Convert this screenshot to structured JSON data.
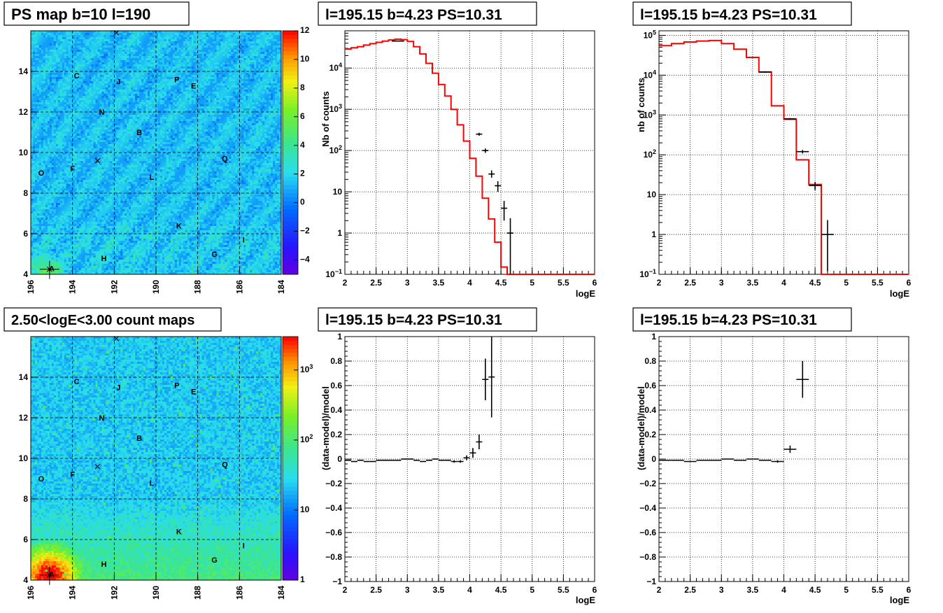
{
  "chart_data": [
    {
      "type": "heatmap",
      "title": "PS map b=10 l=190",
      "xlim": [
        196,
        184
      ],
      "ylim": [
        4,
        16
      ],
      "x_ticks": [
        "196",
        "194",
        "192",
        "190",
        "188",
        "186",
        "184"
      ],
      "y_ticks": [
        "4",
        "6",
        "8",
        "10",
        "12",
        "14"
      ],
      "z_range": [
        -5,
        12
      ],
      "z_ticks": [
        "12",
        "10",
        "8",
        "6",
        "4",
        "2",
        "0",
        "-2",
        "-4"
      ],
      "z_scale": "linear",
      "source_labels": [
        {
          "name": "A",
          "l": 195.0,
          "b": 4.3
        },
        {
          "name": "B",
          "l": 190.8,
          "b": 11.0
        },
        {
          "name": "C",
          "l": 193.8,
          "b": 13.8
        },
        {
          "name": "E",
          "l": 188.2,
          "b": 13.3
        },
        {
          "name": "F",
          "l": 194.0,
          "b": 9.2
        },
        {
          "name": "G",
          "l": 187.2,
          "b": 5.0
        },
        {
          "name": "H",
          "l": 192.5,
          "b": 4.8
        },
        {
          "name": "I",
          "l": 185.8,
          "b": 5.7
        },
        {
          "name": "J",
          "l": 191.8,
          "b": 13.5
        },
        {
          "name": "K",
          "l": 188.9,
          "b": 6.4
        },
        {
          "name": "L",
          "l": 190.2,
          "b": 8.8
        },
        {
          "name": "N",
          "l": 192.6,
          "b": 12.0
        },
        {
          "name": "O",
          "l": 195.5,
          "b": 9.0
        },
        {
          "name": "P",
          "l": 189.0,
          "b": 13.6
        },
        {
          "name": "Q",
          "l": 186.7,
          "b": 9.7
        }
      ],
      "markers": [
        {
          "l": 191.9,
          "b": 15.9
        },
        {
          "l": 192.8,
          "b": 9.6
        },
        {
          "l": 195.1,
          "b": 4.25
        }
      ]
    },
    {
      "type": "line",
      "title": "l=195.15 b=4.23 PS=10.31",
      "xlabel": "logE",
      "ylabel": "Nb of counts",
      "xlim": [
        2,
        6
      ],
      "ylim": [
        0.1,
        80000
      ],
      "y_scale": "log",
      "x_ticks": [
        "2",
        "2.5",
        "3",
        "3.5",
        "4",
        "4.5",
        "5",
        "5.5",
        "6"
      ],
      "y_ticks": [
        "10^-1",
        "1",
        "10",
        "10^2",
        "10^3",
        "10^4"
      ],
      "model_step": {
        "edges": [
          2.0,
          2.1,
          2.2,
          2.3,
          2.4,
          2.5,
          2.6,
          2.7,
          2.8,
          2.9,
          3.0,
          3.1,
          3.2,
          3.3,
          3.4,
          3.5,
          3.6,
          3.7,
          3.8,
          3.9,
          4.0,
          4.1,
          4.2,
          4.3,
          4.4,
          4.5,
          4.6,
          6.0
        ],
        "values": [
          29000,
          31000,
          33000,
          36000,
          39000,
          42000,
          45000,
          48000,
          50000,
          49000,
          44000,
          33000,
          22000,
          13000,
          7500,
          4000,
          2100,
          1000,
          420,
          170,
          65,
          24,
          7,
          2.2,
          0.6,
          0.15,
          0.1
        ]
      },
      "data_points": [
        {
          "x": 2.85,
          "y": 45000,
          "dx": 0.1,
          "ylo": 44000,
          "yhi": 46000
        },
        {
          "x": 4.15,
          "y": 250,
          "dx": 0.05,
          "ylo": 230,
          "yhi": 270
        },
        {
          "x": 4.25,
          "y": 100,
          "dx": 0.05,
          "ylo": 88,
          "yhi": 112
        },
        {
          "x": 4.35,
          "y": 27,
          "dx": 0.05,
          "ylo": 22,
          "yhi": 33
        },
        {
          "x": 4.45,
          "y": 14,
          "dx": 0.05,
          "ylo": 10,
          "yhi": 18
        },
        {
          "x": 4.55,
          "y": 4,
          "dx": 0.05,
          "ylo": 2,
          "yhi": 6
        },
        {
          "x": 4.65,
          "y": 1,
          "dx": 0.05,
          "ylo": 0.1,
          "yhi": 2.3
        }
      ]
    },
    {
      "type": "line",
      "title": "l=195.15 b=4.23 PS=10.31",
      "xlabel": "logE",
      "ylabel": "nb of counts",
      "xlim": [
        2,
        6
      ],
      "ylim": [
        0.1,
        130000
      ],
      "y_scale": "log",
      "x_ticks": [
        "2",
        "2.5",
        "3",
        "3.5",
        "4",
        "4.5",
        "5",
        "5.5",
        "6"
      ],
      "y_ticks": [
        "10^-1",
        "1",
        "10",
        "10^2",
        "10^3",
        "10^4",
        "10^5"
      ],
      "model_step": {
        "edges": [
          2.0,
          2.2,
          2.4,
          2.6,
          2.8,
          3.0,
          3.2,
          3.4,
          3.6,
          3.8,
          4.0,
          4.2,
          4.4,
          4.6,
          6.0
        ],
        "values": [
          55000,
          62000,
          68000,
          72000,
          74000,
          62000,
          45000,
          28000,
          12000,
          1700,
          780,
          75,
          18,
          0.1
        ]
      },
      "data_points": [
        {
          "x": 3.7,
          "y": 12000,
          "dx": 0.1,
          "ylo": 11500,
          "yhi": 12500
        },
        {
          "x": 4.1,
          "y": 800,
          "dx": 0.1,
          "ylo": 760,
          "yhi": 840
        },
        {
          "x": 4.3,
          "y": 120,
          "dx": 0.1,
          "ylo": 108,
          "yhi": 132
        },
        {
          "x": 4.5,
          "y": 17,
          "dx": 0.1,
          "ylo": 13,
          "yhi": 21
        },
        {
          "x": 4.7,
          "y": 1,
          "dx": 0.1,
          "ylo": 0.12,
          "yhi": 2.3
        }
      ]
    },
    {
      "type": "heatmap",
      "title": "2.50<logE<3.00 count maps",
      "xlim": [
        196,
        184
      ],
      "ylim": [
        4,
        16
      ],
      "x_ticks": [
        "196",
        "194",
        "192",
        "190",
        "188",
        "186",
        "184"
      ],
      "y_ticks": [
        "4",
        "6",
        "8",
        "10",
        "12",
        "14"
      ],
      "z_range": [
        1,
        3000
      ],
      "z_scale": "log",
      "z_ticks": [
        "10^3",
        "10^2",
        "10",
        "1"
      ],
      "source_labels": [
        {
          "name": "A",
          "l": 195.0,
          "b": 4.3
        },
        {
          "name": "B",
          "l": 190.8,
          "b": 11.0
        },
        {
          "name": "C",
          "l": 193.8,
          "b": 13.8
        },
        {
          "name": "E",
          "l": 188.2,
          "b": 13.3
        },
        {
          "name": "F",
          "l": 194.0,
          "b": 9.2
        },
        {
          "name": "G",
          "l": 187.2,
          "b": 5.0
        },
        {
          "name": "H",
          "l": 192.5,
          "b": 4.8
        },
        {
          "name": "I",
          "l": 185.8,
          "b": 5.7
        },
        {
          "name": "J",
          "l": 191.8,
          "b": 13.5
        },
        {
          "name": "K",
          "l": 188.9,
          "b": 6.4
        },
        {
          "name": "L",
          "l": 190.2,
          "b": 8.8
        },
        {
          "name": "N",
          "l": 192.6,
          "b": 12.0
        },
        {
          "name": "O",
          "l": 195.5,
          "b": 9.0
        },
        {
          "name": "P",
          "l": 189.0,
          "b": 13.6
        },
        {
          "name": "Q",
          "l": 186.7,
          "b": 9.7
        }
      ],
      "markers": [
        {
          "l": 191.9,
          "b": 15.9
        },
        {
          "l": 192.8,
          "b": 9.6
        },
        {
          "l": 195.1,
          "b": 4.25
        }
      ]
    },
    {
      "type": "scatter",
      "title": "l=195.15 b=4.23 PS=10.31",
      "xlabel": "logE",
      "ylabel": "(data-model)/model",
      "xlim": [
        2,
        6
      ],
      "ylim": [
        -1,
        1
      ],
      "x_ticks": [
        "2",
        "2.5",
        "3",
        "3.5",
        "4",
        "4.5",
        "5",
        "5.5",
        "6"
      ],
      "y_ticks": [
        "-1",
        "-0.8",
        "-0.6",
        "-0.4",
        "-0.2",
        "0",
        "0.2",
        "0.4",
        "0.6",
        "0.8",
        "1"
      ],
      "data_points": [
        {
          "x": 2.05,
          "y": -0.01,
          "dx": 0.05,
          "ey": 0
        },
        {
          "x": 2.15,
          "y": -0.02,
          "dx": 0.05,
          "ey": 0
        },
        {
          "x": 2.25,
          "y": -0.01,
          "dx": 0.05,
          "ey": 0
        },
        {
          "x": 2.35,
          "y": -0.02,
          "dx": 0.05,
          "ey": 0
        },
        {
          "x": 2.45,
          "y": -0.02,
          "dx": 0.05,
          "ey": 0
        },
        {
          "x": 2.55,
          "y": -0.01,
          "dx": 0.05,
          "ey": 0
        },
        {
          "x": 2.65,
          "y": -0.01,
          "dx": 0.05,
          "ey": 0
        },
        {
          "x": 2.75,
          "y": -0.01,
          "dx": 0.05,
          "ey": 0
        },
        {
          "x": 2.85,
          "y": -0.01,
          "dx": 0.05,
          "ey": 0
        },
        {
          "x": 2.95,
          "y": 0.0,
          "dx": 0.05,
          "ey": 0
        },
        {
          "x": 3.05,
          "y": 0.0,
          "dx": 0.05,
          "ey": 0
        },
        {
          "x": 3.15,
          "y": -0.01,
          "dx": 0.05,
          "ey": 0
        },
        {
          "x": 3.25,
          "y": -0.02,
          "dx": 0.05,
          "ey": 0
        },
        {
          "x": 3.35,
          "y": -0.01,
          "dx": 0.05,
          "ey": 0
        },
        {
          "x": 3.45,
          "y": 0.0,
          "dx": 0.05,
          "ey": 0
        },
        {
          "x": 3.55,
          "y": -0.01,
          "dx": 0.05,
          "ey": 0
        },
        {
          "x": 3.65,
          "y": -0.01,
          "dx": 0.05,
          "ey": 0
        },
        {
          "x": 3.75,
          "y": -0.02,
          "dx": 0.05,
          "ey": 0.01
        },
        {
          "x": 3.85,
          "y": -0.02,
          "dx": 0.05,
          "ey": 0.01
        },
        {
          "x": 3.95,
          "y": 0.01,
          "dx": 0.05,
          "ey": 0.02
        },
        {
          "x": 4.05,
          "y": 0.05,
          "dx": 0.05,
          "ey": 0.04
        },
        {
          "x": 4.15,
          "y": 0.14,
          "dx": 0.05,
          "ey": 0.06
        },
        {
          "x": 4.25,
          "y": 0.65,
          "dx": 0.05,
          "ey": 0.17
        },
        {
          "x": 4.35,
          "y": 0.67,
          "dx": 0.05,
          "ey": 0.33
        }
      ]
    },
    {
      "type": "scatter",
      "title": "l=195.15 b=4.23 PS=10.31",
      "xlabel": "logE",
      "ylabel": "(data-model)/model",
      "xlim": [
        2,
        6
      ],
      "ylim": [
        -1,
        1
      ],
      "x_ticks": [
        "2",
        "2.5",
        "3",
        "3.5",
        "4",
        "4.5",
        "5",
        "5.5",
        "6"
      ],
      "y_ticks": [
        "-1",
        "-0.8",
        "-0.6",
        "-0.4",
        "-0.2",
        "0",
        "0.2",
        "0.4",
        "0.6",
        "0.8",
        "1"
      ],
      "data_points": [
        {
          "x": 2.1,
          "y": -0.01,
          "dx": 0.1,
          "ey": 0
        },
        {
          "x": 2.3,
          "y": -0.01,
          "dx": 0.1,
          "ey": 0
        },
        {
          "x": 2.5,
          "y": -0.02,
          "dx": 0.1,
          "ey": 0
        },
        {
          "x": 2.7,
          "y": -0.01,
          "dx": 0.1,
          "ey": 0
        },
        {
          "x": 2.9,
          "y": -0.01,
          "dx": 0.1,
          "ey": 0
        },
        {
          "x": 3.1,
          "y": 0.0,
          "dx": 0.1,
          "ey": 0
        },
        {
          "x": 3.3,
          "y": -0.01,
          "dx": 0.1,
          "ey": 0
        },
        {
          "x": 3.5,
          "y": 0.0,
          "dx": 0.1,
          "ey": 0
        },
        {
          "x": 3.7,
          "y": -0.01,
          "dx": 0.1,
          "ey": 0
        },
        {
          "x": 3.9,
          "y": -0.02,
          "dx": 0.1,
          "ey": 0.01
        },
        {
          "x": 4.1,
          "y": 0.08,
          "dx": 0.1,
          "ey": 0.03
        },
        {
          "x": 4.3,
          "y": 0.65,
          "dx": 0.1,
          "ey": 0.15
        }
      ]
    }
  ],
  "colors": {
    "model": "#ff0000",
    "data": "#000000",
    "grid": "#000000",
    "map_base": "#33ddee"
  }
}
